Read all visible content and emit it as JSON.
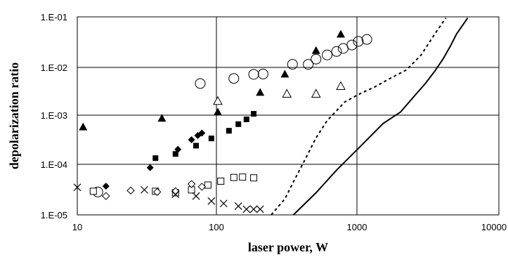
{
  "chart_data": {
    "type": "scatter",
    "title": "",
    "xlabel": "laser power, W",
    "ylabel": "depolarization ratio",
    "xscale": "log",
    "yscale": "log",
    "xlim": [
      10,
      10000
    ],
    "ylim": [
      1e-05,
      0.1
    ],
    "grid": "major",
    "legend": "none",
    "xticks": [
      {
        "value": 10,
        "label": "10"
      },
      {
        "value": 100,
        "label": "100"
      },
      {
        "value": 1000,
        "label": "1000"
      },
      {
        "value": 10000,
        "label": "10000"
      }
    ],
    "yticks": [
      {
        "value": 0.1,
        "label": "1.E-01"
      },
      {
        "value": 0.01,
        "label": "1.E-02"
      },
      {
        "value": 0.001,
        "label": "1.E-03"
      },
      {
        "value": 0.0001,
        "label": "1.E-04"
      },
      {
        "value": 1e-05,
        "label": "1.E-05"
      }
    ],
    "series": [
      {
        "marker": "filled-triangle",
        "points": [
          [
            11,
            0.0006
          ],
          [
            40,
            0.0009
          ],
          [
            100,
            0.0012
          ],
          [
            200,
            0.003
          ],
          [
            300,
            0.007
          ],
          [
            500,
            0.021
          ],
          [
            750,
            0.045
          ]
        ]
      },
      {
        "marker": "open-circle",
        "points": [
          [
            14,
            2.9e-05
          ],
          [
            75,
            0.0045
          ],
          [
            130,
            0.0057
          ],
          [
            180,
            0.0069
          ],
          [
            210,
            0.007
          ],
          [
            340,
            0.011
          ],
          [
            440,
            0.011
          ],
          [
            500,
            0.014
          ],
          [
            600,
            0.017
          ],
          [
            700,
            0.02
          ],
          [
            780,
            0.023
          ],
          [
            900,
            0.027
          ],
          [
            1000,
            0.032
          ],
          [
            1150,
            0.035
          ]
        ]
      },
      {
        "marker": "filled-square",
        "points": [
          [
            36,
            0.00014
          ],
          [
            50,
            0.00017
          ],
          [
            70,
            0.00025
          ],
          [
            90,
            0.00035
          ],
          [
            120,
            0.0005
          ],
          [
            140,
            0.00068
          ],
          [
            160,
            0.00085
          ],
          [
            180,
            0.0011
          ]
        ]
      },
      {
        "marker": "filled-diamond",
        "points": [
          [
            16,
            3.8e-05
          ],
          [
            33,
            9e-05
          ],
          [
            52,
            0.00021
          ],
          [
            65,
            0.00033
          ],
          [
            72,
            0.0004
          ],
          [
            77,
            0.00045
          ]
        ]
      },
      {
        "marker": "open-triangle",
        "points": [
          [
            100,
            0.002
          ],
          [
            310,
            0.0028
          ],
          [
            500,
            0.0028
          ],
          [
            750,
            0.004
          ]
        ]
      },
      {
        "marker": "open-square",
        "points": [
          [
            13,
            3e-05
          ],
          [
            36,
            3e-05
          ],
          [
            50,
            2.8e-05
          ],
          [
            65,
            3.2e-05
          ],
          [
            85,
            4e-05
          ],
          [
            105,
            4.8e-05
          ],
          [
            130,
            5.7e-05
          ],
          [
            150,
            5.8e-05
          ],
          [
            180,
            5.6e-05
          ]
        ]
      },
      {
        "marker": "open-diamond",
        "points": [
          [
            16,
            2.4e-05
          ],
          [
            24,
            3.1e-05
          ],
          [
            37,
            2.9e-05
          ],
          [
            50,
            3e-05
          ],
          [
            65,
            4.2e-05
          ],
          [
            77,
            3.7e-05
          ]
        ]
      },
      {
        "marker": "cross",
        "points": [
          [
            10,
            3.6e-05
          ],
          [
            30,
            3.2e-05
          ],
          [
            50,
            2.6e-05
          ],
          [
            70,
            2.4e-05
          ],
          [
            90,
            1.9e-05
          ],
          [
            110,
            1.7e-05
          ],
          [
            140,
            1.5e-05
          ],
          [
            160,
            1.3e-05
          ],
          [
            180,
            1.3e-05
          ],
          [
            200,
            1.3e-05
          ]
        ]
      },
      {
        "style": "dashed",
        "points": [
          [
            240,
            1e-05
          ],
          [
            300,
            2.1e-05
          ],
          [
            350,
            5e-05
          ],
          [
            420,
            0.000135
          ],
          [
            500,
            0.00036
          ],
          [
            600,
            0.0008
          ],
          [
            800,
            0.0019
          ],
          [
            1000,
            0.0027
          ],
          [
            1300,
            0.0038
          ],
          [
            1700,
            0.0058
          ],
          [
            2200,
            0.0085
          ],
          [
            2800,
            0.017
          ],
          [
            3500,
            0.045
          ],
          [
            4200,
            0.095
          ]
        ]
      },
      {
        "style": "solid",
        "points": [
          [
            345,
            1e-05
          ],
          [
            500,
            2.8e-05
          ],
          [
            700,
            8e-05
          ],
          [
            1000,
            0.00022
          ],
          [
            1500,
            0.0007
          ],
          [
            2000,
            0.0012
          ],
          [
            2500,
            0.0025
          ],
          [
            3000,
            0.0045
          ],
          [
            3500,
            0.008
          ],
          [
            4000,
            0.014
          ],
          [
            4500,
            0.025
          ],
          [
            5000,
            0.045
          ],
          [
            6000,
            0.095
          ]
        ]
      }
    ]
  }
}
